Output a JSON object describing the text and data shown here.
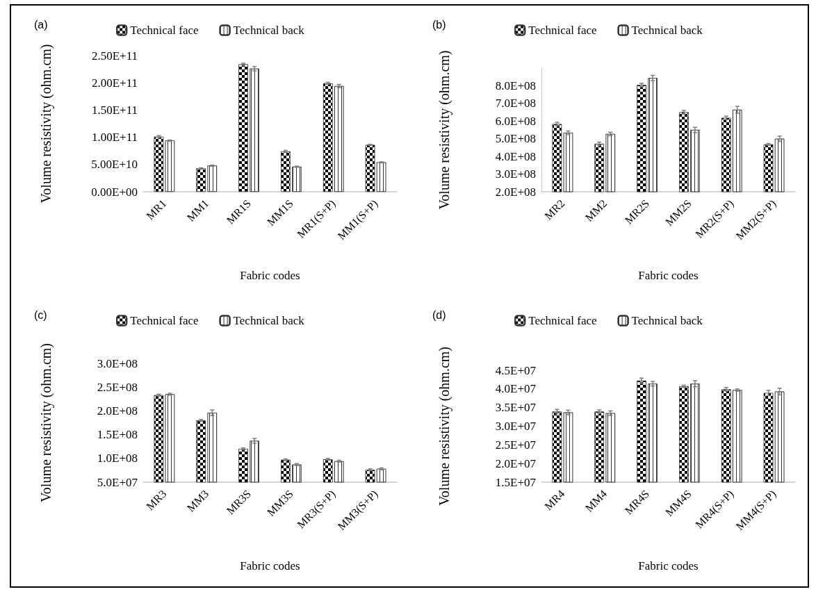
{
  "chart_data": [
    {
      "type": "bar",
      "title": "(a)",
      "xlabel": "Fabric codes",
      "ylabel": "Volume resistivity (ohm.cm)",
      "categories": [
        "MR1",
        "MM1",
        "MR1S",
        "MM1S",
        "MR1(S+P)",
        "MM1(S+P)"
      ],
      "series": [
        {
          "name": "Technical face",
          "color": "#000000",
          "values": [
            101000000000.0,
            43000000000.0,
            234000000000.0,
            74000000000.0,
            199000000000.0,
            86000000000.0
          ],
          "errors": [
            2000000000.0,
            1000000000.0,
            2000000000.0,
            2000000000.0,
            2000000000.0,
            1000000000.0
          ]
        },
        {
          "name": "Technical back",
          "color": "#ffffff",
          "values": [
            94000000000.0,
            48000000000.0,
            226000000000.0,
            46000000000.0,
            194000000000.0,
            54000000000.0
          ],
          "errors": [
            1000000000.0,
            1000000000.0,
            4000000000.0,
            1000000000.0,
            3000000000.0,
            1000000000.0
          ]
        }
      ],
      "ylim": [
        0,
        250000000000.0
      ],
      "yticks": [
        {
          "value": 0,
          "label": "0.00E+00"
        },
        {
          "value": 50000000000.0,
          "label": "5.00E+10"
        },
        {
          "value": 100000000000.0,
          "label": "1.00E+11"
        },
        {
          "value": 150000000000.0,
          "label": "1.50E+11"
        },
        {
          "value": 200000000000.0,
          "label": "2.00E+11"
        },
        {
          "value": 250000000000.0,
          "label": "2.50E+11"
        }
      ],
      "grid": false,
      "legend": "top"
    },
    {
      "type": "bar",
      "title": "(b)",
      "xlabel": "Fabric codes",
      "ylabel": "Volume resistivity (ohm.cm)",
      "categories": [
        "MR2",
        "MM2",
        "MR2S",
        "MM2S",
        "MR2(S+P)",
        "MM2(S+P)"
      ],
      "series": [
        {
          "name": "Technical face",
          "color": "#000000",
          "values": [
            583000000.0,
            471000000.0,
            804000000.0,
            650000000.0,
            618000000.0,
            468000000.0
          ],
          "errors": [
            10000000.0,
            10000000.0,
            10000000.0,
            10000000.0,
            10000000.0,
            5000000.0
          ]
        },
        {
          "name": "Technical back",
          "color": "#ffffff",
          "values": [
            534000000.0,
            527000000.0,
            844000000.0,
            550000000.0,
            664000000.0,
            500000000.0
          ],
          "errors": [
            10000000.0,
            10000000.0,
            15000000.0,
            15000000.0,
            20000000.0,
            15000000.0
          ]
        }
      ],
      "ylim": [
        200000000.0,
        900000000.0
      ],
      "yticks": [
        {
          "value": 200000000.0,
          "label": "2.0E+08"
        },
        {
          "value": 300000000.0,
          "label": "3.0E+08"
        },
        {
          "value": 400000000.0,
          "label": "4.0E+08"
        },
        {
          "value": 500000000.0,
          "label": "5.0E+08"
        },
        {
          "value": 600000000.0,
          "label": "6.0E+08"
        },
        {
          "value": 700000000.0,
          "label": "7.0E+08"
        },
        {
          "value": 800000000.0,
          "label": "8.0E+08"
        }
      ],
      "grid": false,
      "legend": "top"
    },
    {
      "type": "bar",
      "title": "(c)",
      "xlabel": "Fabric codes",
      "ylabel": "Volume resistivity (ohm.cm)",
      "categories": [
        "MR3",
        "MM3",
        "MR3S",
        "MM3S",
        "MR3(S+P)",
        "MM3(S+P)"
      ],
      "series": [
        {
          "name": "Technical face",
          "color": "#000000",
          "values": [
            233000000.0,
            180000000.0,
            120000000.0,
            97000000.0,
            98000000.0,
            76000000.0
          ],
          "errors": [
            2000000.0,
            2000000.0,
            2000000.0,
            2000000.0,
            2000000.0,
            2000000.0
          ]
        },
        {
          "name": "Technical back",
          "color": "#ffffff",
          "values": [
            235000000.0,
            196000000.0,
            137000000.0,
            87000000.0,
            94000000.0,
            78000000.0
          ],
          "errors": [
            2000000.0,
            6000000.0,
            5000000.0,
            2000000.0,
            2000000.0,
            2000000.0
          ]
        }
      ],
      "ylim": [
        50000000.0,
        300000000.0
      ],
      "yticks": [
        {
          "value": 50000000.0,
          "label": "5.0E+07"
        },
        {
          "value": 100000000.0,
          "label": "1.0E+08"
        },
        {
          "value": 150000000.0,
          "label": "1.5E+08"
        },
        {
          "value": 200000000.0,
          "label": "2.0E+08"
        },
        {
          "value": 250000000.0,
          "label": "2.5E+08"
        },
        {
          "value": 300000000.0,
          "label": "3.0E+08"
        }
      ],
      "grid": false,
      "legend": "top"
    },
    {
      "type": "bar",
      "title": "(d)",
      "xlabel": "Fabric codes",
      "ylabel": "Volume resistivity (ohm.cm)",
      "categories": [
        "MR4",
        "MM4",
        "MR4S",
        "MM4S",
        "MR4(S+P)",
        "MM4(S+P)"
      ],
      "series": [
        {
          "name": "Technical face",
          "color": "#000000",
          "values": [
            33900000.0,
            33900000.0,
            42200000.0,
            40700000.0,
            39900000.0,
            38900000.0
          ],
          "errors": [
            600000.0,
            500000.0,
            700000.0,
            300000.0,
            500000.0,
            700000.0
          ]
        },
        {
          "name": "Technical back",
          "color": "#ffffff",
          "values": [
            33700000.0,
            33500000.0,
            41400000.0,
            41400000.0,
            39700000.0,
            39300000.0
          ],
          "errors": [
            600000.0,
            600000.0,
            600000.0,
            800000.0,
            300000.0,
            900000.0
          ]
        }
      ],
      "ylim": [
        15000000.0,
        45000000.0
      ],
      "yticks": [
        {
          "value": 15000000.0,
          "label": "1.5E+07"
        },
        {
          "value": 20000000.0,
          "label": "2.0E+07"
        },
        {
          "value": 25000000.0,
          "label": "2.5E+07"
        },
        {
          "value": 30000000.0,
          "label": "3.0E+07"
        },
        {
          "value": 35000000.0,
          "label": "3.5E+07"
        },
        {
          "value": 40000000.0,
          "label": "4.0E+07"
        },
        {
          "value": 45000000.0,
          "label": "4.5E+07"
        }
      ],
      "grid": false,
      "legend": "top"
    }
  ]
}
